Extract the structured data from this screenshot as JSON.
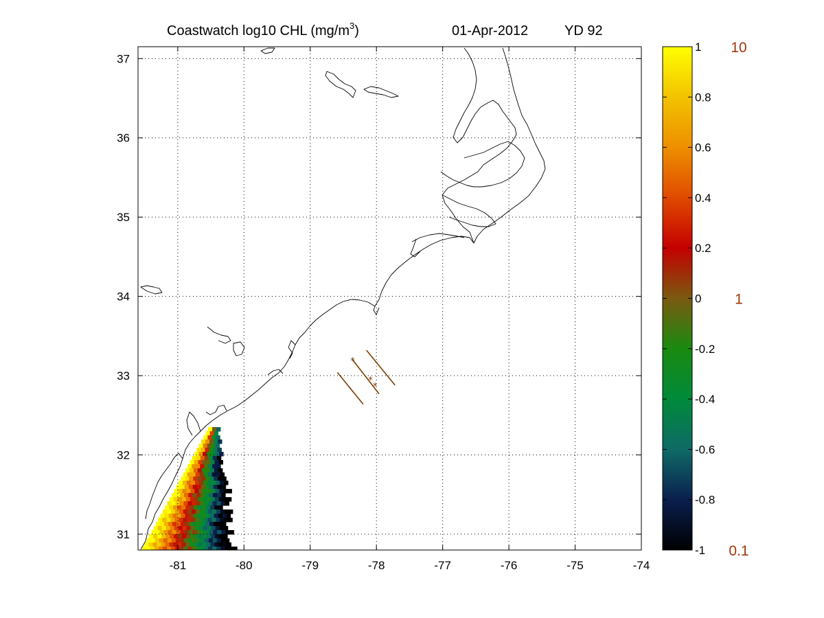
{
  "title": {
    "product": "Coastwatch  log10  CHL (mg/m",
    "superscript": "3",
    "close": ")",
    "date": "01-Apr-2012",
    "yearday": "YD 92"
  },
  "map": {
    "lon_range": [
      -81.6,
      -74
    ],
    "lat_range": [
      30.8,
      37.15
    ],
    "lon_ticks": [
      -81,
      -80,
      -79,
      -78,
      -77,
      -76,
      -75,
      -74
    ],
    "lat_ticks": [
      31,
      32,
      33,
      34,
      35,
      36,
      37
    ],
    "lon_labels": [
      "-81",
      "-80",
      "-79",
      "-78",
      "-77",
      "-76",
      "-75",
      "-74"
    ],
    "lat_labels": [
      "31",
      "32",
      "33",
      "34",
      "35",
      "36",
      "37"
    ],
    "grid": true
  },
  "colorbar": {
    "range": [
      -1,
      1
    ],
    "ticks": [
      -1,
      -0.8,
      -0.6,
      -0.4,
      -0.2,
      0,
      0.2,
      0.4,
      0.6,
      0.8,
      1
    ],
    "labels": [
      "-1",
      "-0.8",
      "-0.6",
      "-0.4",
      "-0.2",
      "0",
      "0.2",
      "0.4",
      "0.6",
      "0.8",
      "1"
    ],
    "colors": [
      "#000000",
      "#0a1f4e",
      "#0f6a66",
      "#008a3a",
      "#1a8a10",
      "#7a5a10",
      "#c40000",
      "#e04a00",
      "#ee8f00",
      "#f2c300",
      "#ffff00"
    ],
    "conc_labels": [
      {
        "value": 1,
        "text": "10"
      },
      {
        "value": 0,
        "text": "1"
      },
      {
        "value": -1,
        "text": "0.1"
      }
    ],
    "conc_color": "#a0360a"
  },
  "transects": [
    {
      "start": [
        -78.59,
        33.04
      ],
      "end": [
        -78.2,
        32.64
      ]
    },
    {
      "start": [
        -78.36,
        33.2
      ],
      "end": [
        -77.96,
        32.77
      ]
    },
    {
      "start": [
        -78.15,
        33.32
      ],
      "end": [
        -77.72,
        32.88
      ]
    }
  ],
  "stations": [
    [
      -78.36,
      33.19
    ],
    [
      -78.09,
      32.95
    ],
    [
      -78.02,
      32.87
    ]
  ],
  "transect_color": "#7a3c00"
}
